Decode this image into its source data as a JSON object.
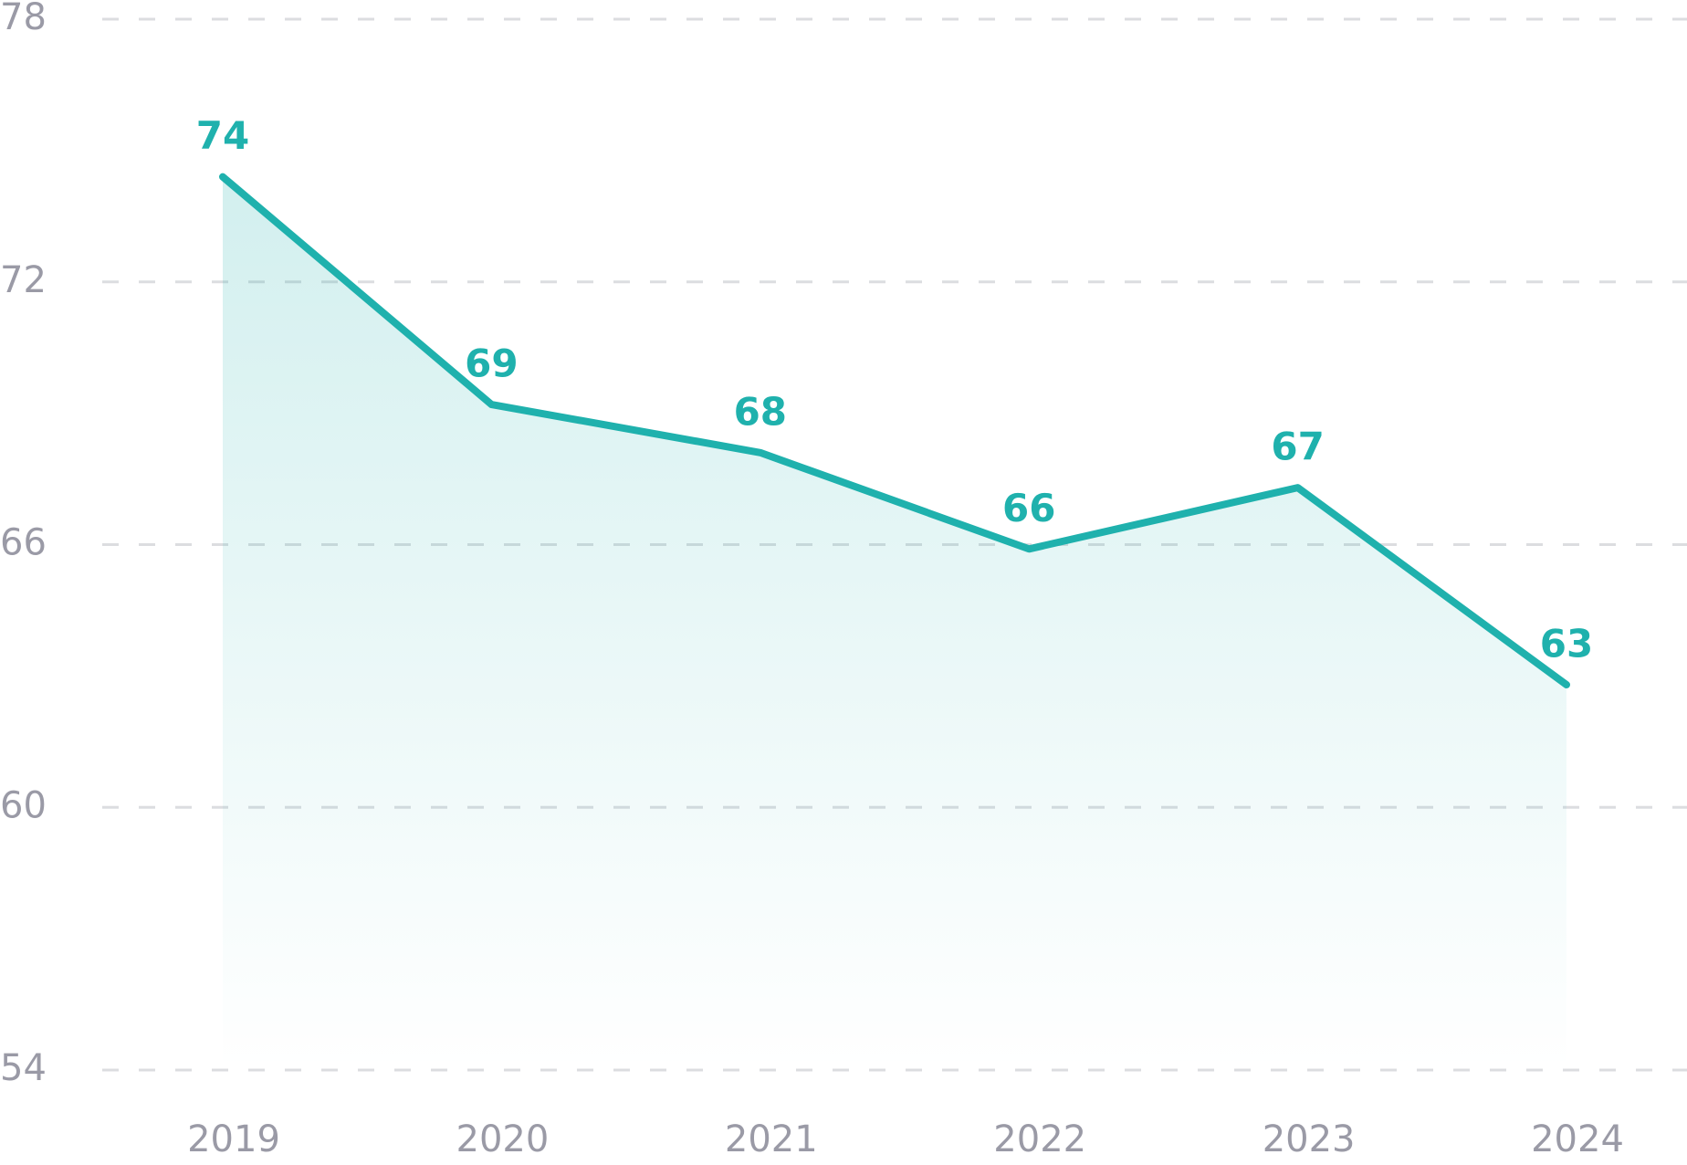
{
  "chart_data": {
    "type": "area",
    "categories": [
      "2019",
      "2020",
      "2021",
      "2022",
      "2023",
      "2024"
    ],
    "values": [
      74.4,
      69.2,
      68.1,
      65.9,
      67.3,
      62.8
    ],
    "value_labels": [
      "74",
      "69",
      "68",
      "66",
      "67",
      "63"
    ],
    "color": "#1fb1ad",
    "ylim": [
      54,
      78
    ],
    "yticks": [
      54,
      60,
      66,
      72,
      78
    ],
    "grid": true
  }
}
